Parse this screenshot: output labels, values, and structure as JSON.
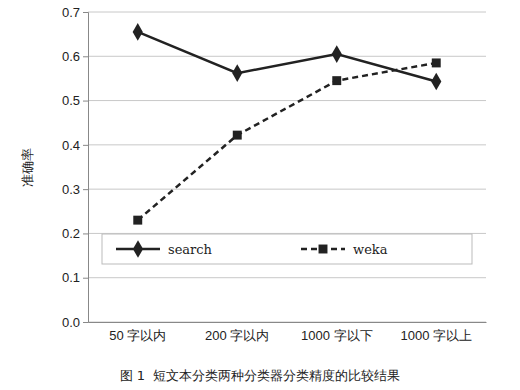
{
  "chart_data": {
    "type": "line",
    "title": "图 1  短文本分类两种分类器分类精度的比较结果",
    "y_label": "准确率",
    "categories": [
      "50 字以内",
      "200 字以内",
      "1000 字以下",
      "1000 字以上"
    ],
    "series": [
      {
        "name": "search",
        "color": "#222222",
        "marker": "diamond",
        "line_style": "solid",
        "values": [
          0.655,
          0.562,
          0.605,
          0.543
        ]
      },
      {
        "name": "weka",
        "color": "#222222",
        "marker": "square",
        "line_style": "dashed",
        "values": [
          0.23,
          0.422,
          0.545,
          0.585
        ]
      }
    ],
    "ylim": [
      0,
      0.7
    ],
    "yticks": [
      {
        "value": 0,
        "label": "0.0"
      },
      0.1,
      0.2,
      0.3,
      0.4,
      0.5,
      0.6,
      0.7
    ],
    "grid": true,
    "legend": "bottom"
  }
}
